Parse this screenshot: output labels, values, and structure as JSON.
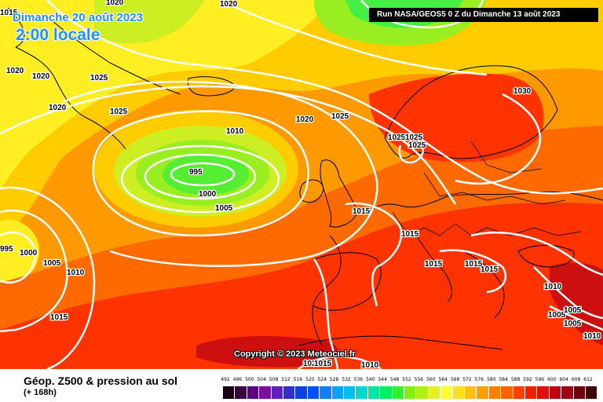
{
  "header": {
    "date": "Dimanche 20 août 2023",
    "time": "2:00 locale",
    "run": "Run NASA/GEOS5 0 Z du Dimanche 13 août 2023"
  },
  "copyright": "Copyright © 2023 Meteociel.fr",
  "footer": {
    "title": "Géop. Z500 & pression au sol",
    "subtitle": "(+ 168h)"
  },
  "map_colors": {
    "land_line": "#000000",
    "isobar": "#ffffff",
    "deep_low": "#22ee22",
    "low": "#99ee22",
    "mid": "#ffee22",
    "warm": "#ffaa00",
    "hot": "#ff6a00",
    "very_hot": "#ff3300",
    "extreme": "#cc1010"
  },
  "isobars": [
    {
      "label": "1020"
    },
    {
      "label": "1015"
    },
    {
      "label": "1020"
    },
    {
      "label": "1020"
    },
    {
      "label": "1025"
    },
    {
      "label": "1020"
    },
    {
      "label": "1025"
    },
    {
      "label": "1020"
    },
    {
      "label": "1010"
    },
    {
      "label": "1020"
    },
    {
      "label": "1025"
    },
    {
      "label": "1030"
    },
    {
      "label": "995"
    },
    {
      "label": "1000"
    },
    {
      "label": "1005"
    },
    {
      "label": "1025"
    },
    {
      "label": "1025"
    },
    {
      "label": "1025"
    },
    {
      "label": "1015"
    },
    {
      "label": "1015"
    },
    {
      "label": "995"
    },
    {
      "label": "1000"
    },
    {
      "label": "1005"
    },
    {
      "label": "1010"
    },
    {
      "label": "1015"
    },
    {
      "label": "1015"
    },
    {
      "label": "1015"
    },
    {
      "label": "1010"
    },
    {
      "label": "1005"
    },
    {
      "label": "1005"
    },
    {
      "label": "1005"
    },
    {
      "label": "1015"
    },
    {
      "label": "1010"
    },
    {
      "label": "1010"
    },
    {
      "label": "1020"
    },
    {
      "label": "1015"
    }
  ],
  "scale": {
    "values": [
      "492",
      "496",
      "500",
      "504",
      "508",
      "512",
      "516",
      "520",
      "524",
      "528",
      "532",
      "536",
      "540",
      "544",
      "548",
      "552",
      "556",
      "560",
      "564",
      "568",
      "572",
      "576",
      "580",
      "584",
      "588",
      "592",
      "596",
      "600",
      "604",
      "608",
      "612"
    ],
    "colors": [
      "#1a0010",
      "#3a0040",
      "#5a0080",
      "#7a10a0",
      "#6020c0",
      "#3030d0",
      "#1040e0",
      "#0050ff",
      "#1080ff",
      "#10a0ff",
      "#00c0f0",
      "#00d8d0",
      "#00e8a0",
      "#00f060",
      "#30f030",
      "#80f010",
      "#b0f010",
      "#e0f020",
      "#ffff30",
      "#ffe020",
      "#ffc010",
      "#ffa000",
      "#ff8000",
      "#ff6000",
      "#ff4000",
      "#f02000",
      "#e01010",
      "#c00010",
      "#a00010",
      "#700010",
      "#400008"
    ]
  }
}
